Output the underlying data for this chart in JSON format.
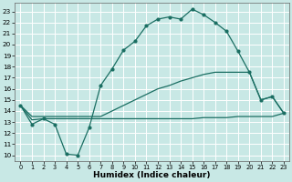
{
  "xlabel": "Humidex (Indice chaleur)",
  "bg_color": "#c8e8e5",
  "line_color": "#1a6e62",
  "grid_color": "#ffffff",
  "xlim": [
    -0.5,
    23.5
  ],
  "ylim": [
    9.5,
    23.8
  ],
  "xticks": [
    0,
    1,
    2,
    3,
    4,
    5,
    6,
    7,
    8,
    9,
    10,
    11,
    12,
    13,
    14,
    15,
    16,
    17,
    18,
    19,
    20,
    21,
    22,
    23
  ],
  "yticks": [
    10,
    11,
    12,
    13,
    14,
    15,
    16,
    17,
    18,
    19,
    20,
    21,
    22,
    23
  ],
  "curve1_x": [
    0,
    1,
    2,
    3,
    4,
    5,
    6,
    7,
    8,
    9,
    10,
    11,
    12,
    13,
    14,
    15,
    16,
    17,
    18,
    19,
    20,
    21,
    22,
    23
  ],
  "curve1_y": [
    14.5,
    12.8,
    13.3,
    12.8,
    10.1,
    10.0,
    12.5,
    16.3,
    17.8,
    19.5,
    20.3,
    21.7,
    22.3,
    22.5,
    22.3,
    23.2,
    22.7,
    22.0,
    21.2,
    19.4,
    17.5,
    15.0,
    15.3,
    13.8
  ],
  "curve2_x": [
    0,
    1,
    2,
    3,
    4,
    5,
    6,
    7,
    8,
    9,
    10,
    11,
    12,
    13,
    14,
    15,
    16,
    17,
    18,
    19,
    20,
    21,
    22,
    23
  ],
  "curve2_y": [
    14.5,
    13.2,
    13.3,
    13.3,
    13.3,
    13.3,
    13.3,
    13.3,
    13.3,
    13.3,
    13.3,
    13.3,
    13.3,
    13.3,
    13.3,
    13.3,
    13.4,
    13.4,
    13.4,
    13.5,
    13.5,
    13.5,
    13.5,
    13.8
  ],
  "curve3_x": [
    0,
    1,
    2,
    3,
    4,
    5,
    6,
    7,
    8,
    9,
    10,
    11,
    12,
    13,
    14,
    15,
    16,
    17,
    18,
    19,
    20,
    21,
    22,
    23
  ],
  "curve3_y": [
    14.5,
    13.5,
    13.5,
    13.5,
    13.5,
    13.5,
    13.5,
    13.5,
    14.0,
    14.5,
    15.0,
    15.5,
    16.0,
    16.3,
    16.7,
    17.0,
    17.3,
    17.5,
    17.5,
    17.5,
    17.5,
    15.0,
    15.3,
    13.8
  ]
}
